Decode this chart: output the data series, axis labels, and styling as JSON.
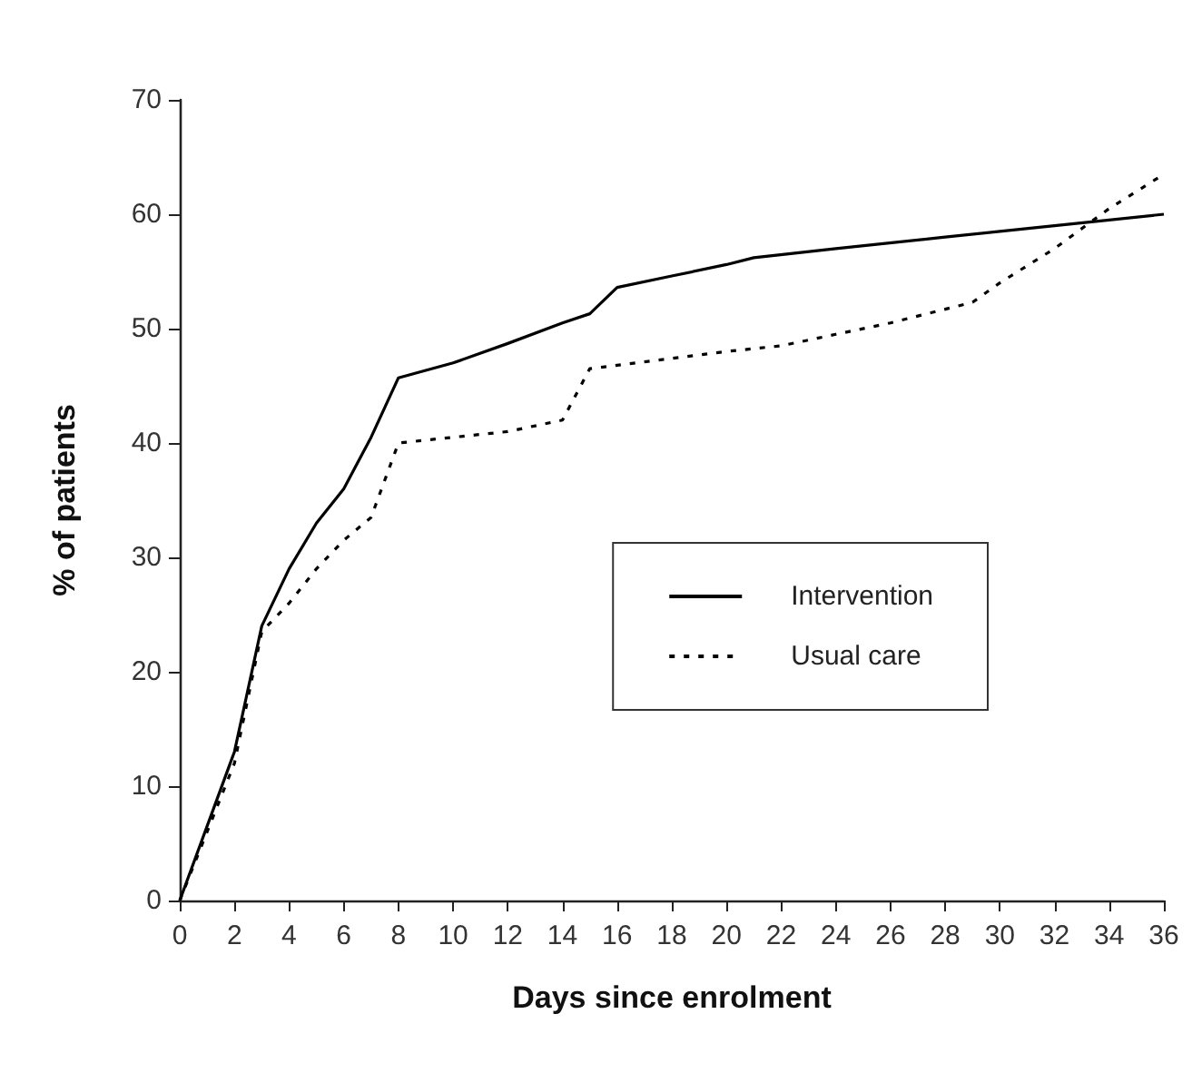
{
  "chart_data": {
    "type": "line",
    "xlabel": "Days since enrolment",
    "ylabel": "% of patients",
    "xlim": [
      0,
      36
    ],
    "xticks": [
      0,
      2,
      4,
      6,
      8,
      10,
      12,
      14,
      16,
      18,
      20,
      22,
      24,
      26,
      28,
      30,
      32,
      34,
      36
    ],
    "ylim": [
      0,
      70
    ],
    "yticks": [
      0,
      10,
      20,
      30,
      40,
      50,
      60,
      70
    ],
    "grid": false,
    "legend": "right",
    "marker": "none",
    "series": [
      {
        "name": "Intervention",
        "color": "#000000",
        "line_style": "solid",
        "x": [
          0,
          2,
          3,
          4,
          5,
          6,
          7,
          8,
          10,
          12,
          14,
          15,
          16,
          18,
          20,
          21,
          24,
          28,
          30,
          32,
          36
        ],
        "values": [
          0,
          13,
          24,
          29,
          33,
          36,
          40.5,
          45.7,
          47,
          48.7,
          50.5,
          51.3,
          53.6,
          54.6,
          55.6,
          56.2,
          57,
          58,
          58.5,
          59,
          60
        ]
      },
      {
        "name": "Usual care",
        "color": "#000000",
        "line_style": "dotted",
        "x": [
          0,
          2,
          3,
          4,
          5,
          6,
          7,
          8,
          10,
          12,
          14,
          15,
          16,
          20,
          22,
          24,
          26,
          29,
          30,
          32,
          34,
          36
        ],
        "values": [
          0,
          12,
          23.5,
          26,
          29,
          31.5,
          33.5,
          40,
          40.5,
          41,
          42,
          46.5,
          46.8,
          48,
          48.5,
          49.5,
          50.5,
          52.3,
          54,
          57,
          60.5,
          63.5
        ]
      }
    ]
  }
}
